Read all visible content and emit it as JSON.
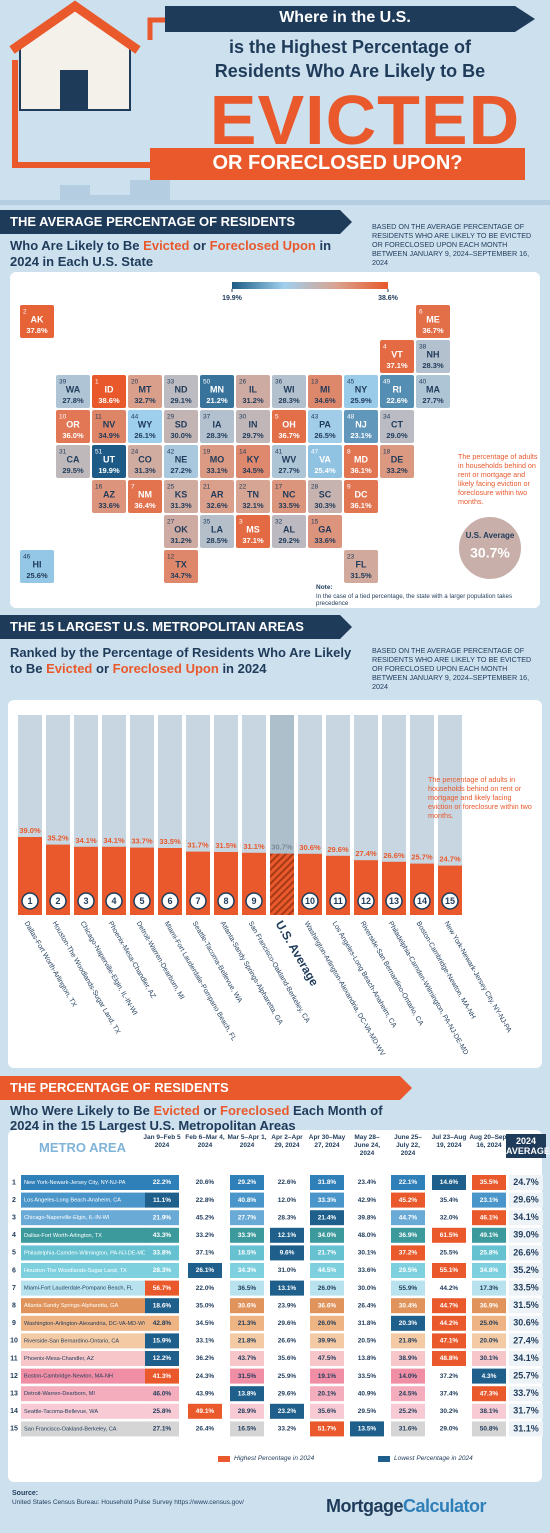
{
  "header": {
    "line1": "Where in the U.S.",
    "line2": "is the Highest Percentage of",
    "line3": "Residents Who Are Likely to Be",
    "big": "EVICTED",
    "banner": "OR FORECLOSED UPON?"
  },
  "note_based": "BASED ON THE AVERAGE PERCENTAGE OF RESIDENTS WHO ARE LIKELY TO BE EVICTED OR FORECLOSED UPON EACH MONTH BETWEEN JANUARY 9, 2024–SEPTEMBER 16, 2024",
  "callout": "The percentage of adults in households behind on rent or mortgage and likely facing eviction or foreclosure within two months.",
  "map": {
    "heading": "THE AVERAGE PERCENTAGE OF RESIDENTS",
    "subtitle": [
      "Who Are Likely to Be",
      "Evicted",
      "or",
      "Foreclosed Upon",
      "in 2024 in Each U.S. State"
    ],
    "legend": [
      {
        "value": 19.9,
        "label": "19.9%"
      },
      {
        "value": 38.6,
        "label": "38.6%"
      }
    ],
    "colors": [
      "#1d5b86",
      "#9fd0ee",
      "#d9a390",
      "#e8582a"
    ],
    "states": [
      {
        "rank": 1,
        "state": "ID",
        "value": 38.6,
        "label": "38.6%"
      },
      {
        "rank": 2,
        "state": "AK",
        "value": 37.8,
        "label": "37.8%"
      },
      {
        "rank": 3,
        "state": "MS",
        "value": 37.1,
        "label": "37.1%"
      },
      {
        "rank": 4,
        "state": "VT",
        "value": 37.1,
        "label": "37.1%"
      },
      {
        "rank": 5,
        "state": "OH",
        "value": 36.7,
        "label": "36.7%"
      },
      {
        "rank": 6,
        "state": "ME",
        "value": 36.7,
        "label": "36.7%"
      },
      {
        "rank": 7,
        "state": "NM",
        "value": 36.4,
        "label": "36.4%"
      },
      {
        "rank": 8,
        "state": "MD",
        "value": 36.1,
        "label": "36.1%"
      },
      {
        "rank": 9,
        "state": "DC",
        "value": 36.1,
        "label": "36.1%"
      },
      {
        "rank": 10,
        "state": "OR",
        "value": 36.0,
        "label": "36.0%"
      },
      {
        "rank": 11,
        "state": "NV",
        "value": 34.9,
        "label": "34.9%"
      },
      {
        "rank": 12,
        "state": "TX",
        "value": 34.7,
        "label": "34.7%"
      },
      {
        "rank": 13,
        "state": "MI",
        "value": 34.6,
        "label": "34.6%"
      },
      {
        "rank": 14,
        "state": "KY",
        "value": 34.5,
        "label": "34.5%"
      },
      {
        "rank": 15,
        "state": "GA",
        "value": 33.6,
        "label": "33.6%"
      },
      {
        "rank": 16,
        "state": "AZ",
        "value": 33.6,
        "label": "33.6%"
      },
      {
        "rank": 17,
        "state": "NC",
        "value": 33.5,
        "label": "33.5%"
      },
      {
        "rank": 18,
        "state": "DE",
        "value": 33.2,
        "label": "33.2%"
      },
      {
        "rank": 19,
        "state": "MO",
        "value": 33.1,
        "label": "33.1%"
      },
      {
        "rank": 20,
        "state": "MT",
        "value": 32.7,
        "label": "32.7%"
      },
      {
        "rank": 21,
        "state": "AR",
        "value": 32.6,
        "label": "32.6%"
      },
      {
        "rank": 22,
        "state": "TN",
        "value": 32.1,
        "label": "32.1%"
      },
      {
        "rank": 23,
        "state": "FL",
        "value": 31.5,
        "label": "31.5%"
      },
      {
        "rank": 24,
        "state": "CO",
        "value": 31.3,
        "label": "31.3%"
      },
      {
        "rank": 25,
        "state": "KS",
        "value": 31.3,
        "label": "31.3%"
      },
      {
        "rank": 26,
        "state": "IL",
        "value": 31.2,
        "label": "31.2%"
      },
      {
        "rank": 27,
        "state": "OK",
        "value": 31.2,
        "label": "31.2%"
      },
      {
        "rank": 28,
        "state": "SC",
        "value": 30.3,
        "label": "30.3%"
      },
      {
        "rank": 29,
        "state": "SD",
        "value": 30.0,
        "label": "30.0%"
      },
      {
        "rank": 30,
        "state": "IN",
        "value": 29.7,
        "label": "29.7%"
      },
      {
        "rank": 31,
        "state": "CA",
        "value": 29.5,
        "label": "29.5%"
      },
      {
        "rank": 32,
        "state": "AL",
        "value": 29.2,
        "label": "29.2%"
      },
      {
        "rank": 33,
        "state": "ND",
        "value": 29.1,
        "label": "29.1%"
      },
      {
        "rank": 34,
        "state": "CT",
        "value": 29.0,
        "label": "29.0%"
      },
      {
        "rank": 35,
        "state": "LA",
        "value": 28.5,
        "label": "28.5%"
      },
      {
        "rank": 36,
        "state": "WI",
        "value": 28.3,
        "label": "28.3%"
      },
      {
        "rank": 37,
        "state": "IA",
        "value": 28.3,
        "label": "28.3%"
      },
      {
        "rank": 38,
        "state": "NH",
        "value": 28.3,
        "label": "28.3%"
      },
      {
        "rank": 39,
        "state": "WA",
        "value": 27.8,
        "label": "27.8%"
      },
      {
        "rank": 40,
        "state": "MA",
        "value": 27.7,
        "label": "27.7%"
      },
      {
        "rank": 41,
        "state": "WV",
        "value": 27.7,
        "label": "27.7%"
      },
      {
        "rank": 42,
        "state": "NE",
        "value": 27.2,
        "label": "27.2%"
      },
      {
        "rank": 43,
        "state": "PA",
        "value": 26.5,
        "label": "26.5%"
      },
      {
        "rank": 44,
        "state": "WY",
        "value": 26.1,
        "label": "26.1%"
      },
      {
        "rank": 45,
        "state": "NY",
        "value": 25.9,
        "label": "25.9%"
      },
      {
        "rank": 46,
        "state": "HI",
        "value": 25.6,
        "label": "25.6%"
      },
      {
        "rank": 47,
        "state": "VA",
        "value": 25.4,
        "label": "25.4%"
      },
      {
        "rank": 48,
        "state": "NJ",
        "value": 23.1,
        "label": "23.1%"
      },
      {
        "rank": 49,
        "state": "RI",
        "value": 22.6,
        "label": "22.6%"
      },
      {
        "rank": 50,
        "state": "MN",
        "value": 21.2,
        "label": "21.2%"
      },
      {
        "rank": 51,
        "state": "UT",
        "value": 19.9,
        "label": "19.9%"
      }
    ],
    "average": {
      "title": "U.S. Average",
      "value": 30.7,
      "label": "30.7%"
    },
    "note_title": "Note:",
    "note": "In the case of a tied percentage, the state with a larger population takes precedence"
  },
  "chart_data": {
    "type": "bar",
    "title": "THE 15 LARGEST U.S. METROPOLITAN AREAS",
    "subtitle": [
      "Ranked by the Percentage of Residents Who Are Likely to Be",
      "Evicted",
      "or",
      "Foreclosed Upon",
      "in 2024"
    ],
    "ranks": [
      1,
      2,
      3,
      4,
      5,
      6,
      7,
      8,
      9,
      null,
      10,
      11,
      12,
      13,
      14,
      15
    ],
    "categories": [
      "Dallas-Fort Worth-Arlington, TX",
      "Houston-The Woodlands-Sugar Land, TX",
      "Chicago-Naperville-Elgin, IL-IN-WI",
      "Phoenix-Mesa-Chandler, AZ",
      "Detroit-Warren-Dearborn, MI",
      "Miami-Fort Lauderdale-Pompano Beach, FL",
      "Seattle-Tacoma-Bellevue, WA",
      "Atlanta-Sandy Springs-Alpharetta, GA",
      "San Francisco-Oakland-Berkeley, CA",
      "U.S. Average",
      "Washington-Arlington-Alexandria, DC-VA-MD-WV",
      "Los Angeles-Long Beach-Anaheim, CA",
      "Riverside-San Bernardino-Ontario, CA",
      "Philadelphia-Camden-Wilmington, PA-NJ-DE-MD",
      "Boston-Cambridge-Newton, MA-NH",
      "New York-Newark-Jersey City, NY-NJ-PA"
    ],
    "values": [
      39.0,
      35.2,
      34.1,
      34.1,
      33.7,
      33.5,
      31.7,
      31.5,
      31.1,
      30.7,
      30.6,
      29.6,
      27.4,
      26.6,
      25.7,
      24.7
    ],
    "value_labels": [
      "39.0%",
      "35.2%",
      "34.1%",
      "34.1%",
      "33.7%",
      "33.5%",
      "31.7%",
      "31.5%",
      "31.1%",
      "30.7%",
      "30.6%",
      "29.6%",
      "27.4%",
      "26.6%",
      "25.7%",
      "24.7%"
    ],
    "color": "#e9592c"
  },
  "table": {
    "heading": "THE PERCENTAGE OF RESIDENTS",
    "subtitle": [
      "Who Were Likely to Be",
      "Evicted",
      "or",
      "Foreclosed",
      "Each Month of 2024 in the 15 Largest U.S. Metropolitan Areas"
    ],
    "columns": [
      "METRO AREA",
      "Jan 9–Feb 5 2024",
      "Feb 6–Mar 4, 2024",
      "Mar 5–Apr 1, 2024",
      "Apr 2–Apr 29, 2024",
      "Apr 30–May 27, 2024",
      "May 28–June 24, 2024",
      "June 25–July 22, 2024",
      "Jul 23–Aug 19, 2024",
      "Aug 20–Sept 16, 2024",
      "2024 AVERAGE"
    ],
    "rows": [
      [
        1,
        "New York-Newark-Jersey City, NY-NJ-PA",
        "22.2%",
        "20.6%",
        "29.2%",
        "22.6%",
        "31.8%",
        "23.4%",
        "22.1%",
        "14.6%",
        "35.5%",
        "24.7%"
      ],
      [
        2,
        "Los Angeles-Long Beach-Anaheim, CA",
        "11.1%",
        "22.8%",
        "40.8%",
        "12.0%",
        "33.3%",
        "42.9%",
        "45.2%",
        "35.4%",
        "23.1%",
        "29.6%"
      ],
      [
        3,
        "Chicago-Naperville-Elgin, IL-IN-WI",
        "21.9%",
        "45.2%",
        "27.7%",
        "28.3%",
        "21.4%",
        "39.8%",
        "44.7%",
        "32.0%",
        "46.1%",
        "34.1%"
      ],
      [
        4,
        "Dallas-Fort Worth-Arlington, TX",
        "43.3%",
        "33.2%",
        "33.3%",
        "12.1%",
        "34.0%",
        "48.0%",
        "36.9%",
        "61.5%",
        "49.1%",
        "39.0%"
      ],
      [
        5,
        "Philadelphia-Camden-Wilmington, PA-NJ-DE-MD",
        "33.8%",
        "37.1%",
        "18.5%",
        "9.6%",
        "21.7%",
        "30.1%",
        "37.2%",
        "25.5%",
        "25.8%",
        "26.6%"
      ],
      [
        6,
        "Houston-The Woodlands-Sugar Land, TX",
        "28.3%",
        "26.1%",
        "34.3%",
        "31.0%",
        "44.5%",
        "33.6%",
        "29.5%",
        "55.1%",
        "34.8%",
        "35.2%"
      ],
      [
        7,
        "Miami-Fort Lauderdale-Pompano Beach, FL",
        "56.7%",
        "22.0%",
        "36.5%",
        "13.1%",
        "26.0%",
        "30.0%",
        "55.9%",
        "44.2%",
        "17.3%",
        "33.5%"
      ],
      [
        8,
        "Atlanta-Sandy Springs-Alpharetta, GA",
        "18.6%",
        "35.0%",
        "30.6%",
        "23.9%",
        "36.6%",
        "26.4%",
        "30.4%",
        "44.7%",
        "36.9%",
        "31.5%"
      ],
      [
        9,
        "Washington-Arlington-Alexandria, DC-VA-MD-WV",
        "42.8%",
        "34.5%",
        "21.3%",
        "29.6%",
        "26.0%",
        "31.8%",
        "20.3%",
        "44.2%",
        "25.0%",
        "30.6%"
      ],
      [
        10,
        "Riverside-San Bernardino-Ontario, CA",
        "15.9%",
        "33.1%",
        "21.8%",
        "26.6%",
        "39.9%",
        "20.5%",
        "21.8%",
        "47.1%",
        "20.0%",
        "27.4%"
      ],
      [
        11,
        "Phoenix-Mesa-Chandler, AZ",
        "12.2%",
        "36.2%",
        "43.7%",
        "35.6%",
        "47.5%",
        "13.8%",
        "38.9%",
        "48.8%",
        "30.1%",
        "34.1%"
      ],
      [
        12,
        "Boston-Cambridge-Newton, MA-NH",
        "41.3%",
        "24.3%",
        "31.5%",
        "25.9%",
        "19.1%",
        "33.5%",
        "14.0%",
        "37.2%",
        "4.3%",
        "25.7%"
      ],
      [
        13,
        "Detroit-Warren-Dearborn, MI",
        "46.0%",
        "43.9%",
        "13.8%",
        "29.6%",
        "20.1%",
        "40.9%",
        "24.5%",
        "37.4%",
        "47.3%",
        "33.7%"
      ],
      [
        14,
        "Seattle-Tacoma-Bellevue, WA",
        "25.8%",
        "49.1%",
        "28.9%",
        "23.2%",
        "35.6%",
        "29.5%",
        "25.2%",
        "30.2%",
        "38.1%",
        "31.7%"
      ],
      [
        15,
        "San Francisco-Oakland-Berkeley, CA",
        "27.1%",
        "26.4%",
        "16.5%",
        "33.2%",
        "51.7%",
        "13.5%",
        "31.6%",
        "29.0%",
        "50.8%",
        "31.1%"
      ]
    ],
    "legend_high": "Highest Percentage in 2024",
    "legend_low": "Lowest Percentage in 2024",
    "high_color": "#e9592c",
    "low_color": "#1e5f8c"
  },
  "source": {
    "title": "Source:",
    "text": "United States Census Bureau: Household Pulse Survey https://www.census.gov/"
  },
  "logo": [
    "Mortgage",
    "Calculator"
  ]
}
